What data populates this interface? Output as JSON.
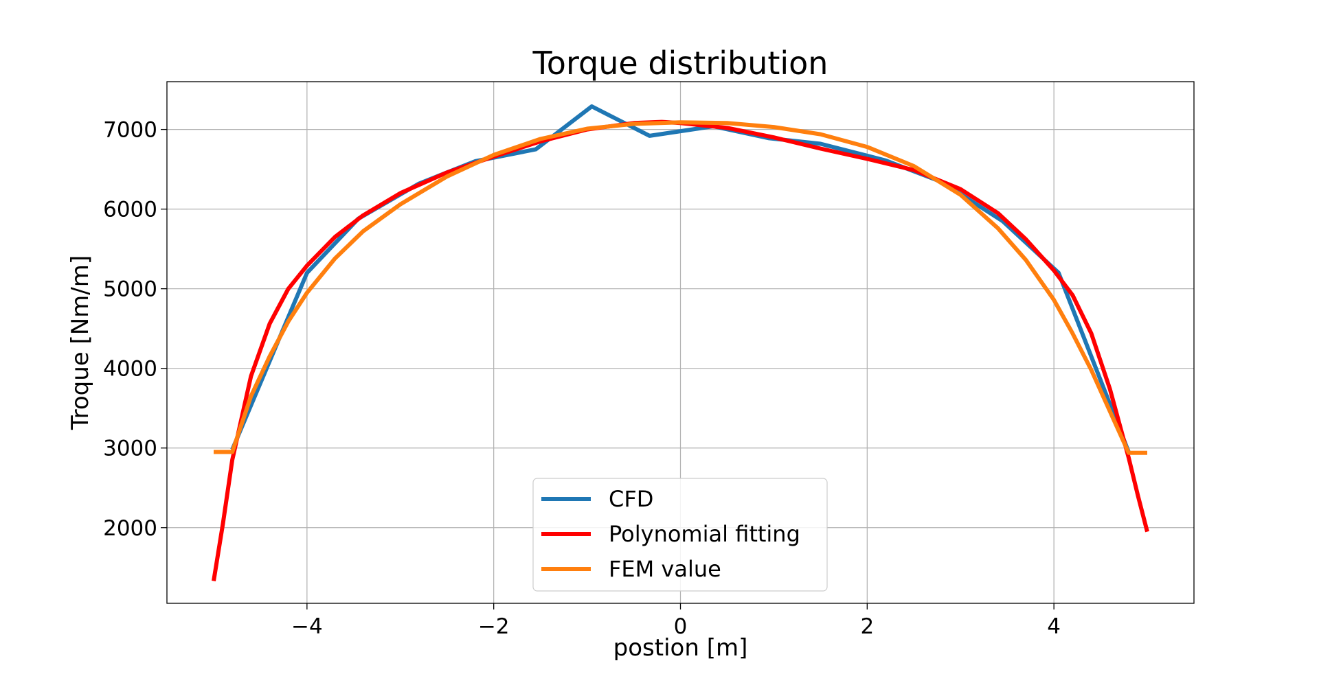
{
  "chart_data": {
    "type": "line",
    "title": "Torque distribution",
    "xlabel": "postion [m]",
    "ylabel": "Troque [Nm/m]",
    "xlim": [
      -5.5,
      5.5
    ],
    "ylim": [
      1050,
      7600
    ],
    "xticks": [
      -4,
      -2,
      0,
      2,
      4
    ],
    "xtick_labels": [
      "−4",
      "−2",
      "0",
      "2",
      "4"
    ],
    "yticks": [
      2000,
      3000,
      4000,
      5000,
      6000,
      7000
    ],
    "ytick_labels": [
      "2000",
      "3000",
      "4000",
      "5000",
      "6000",
      "7000"
    ],
    "grid": true,
    "legend_position": "lower-center",
    "series": [
      {
        "name": "CFD",
        "color": "#1f77b4",
        "x": [
          -4.8,
          -4.0,
          -3.45,
          -2.8,
          -2.2,
          -1.55,
          -0.95,
          -0.33,
          0.35,
          0.95,
          1.5,
          2.2,
          2.8,
          3.45,
          4.05,
          4.8
        ],
        "y": [
          2980,
          5200,
          5880,
          6320,
          6600,
          6750,
          7290,
          6920,
          7040,
          6890,
          6820,
          6610,
          6340,
          5850,
          5200,
          2950
        ]
      },
      {
        "name": "Polynomial fitting",
        "color": "#ff0000",
        "x": [
          -5.0,
          -4.9,
          -4.8,
          -4.6,
          -4.4,
          -4.2,
          -4.0,
          -3.7,
          -3.4,
          -3.0,
          -2.5,
          -2.0,
          -1.5,
          -1.0,
          -0.5,
          -0.2,
          0.0,
          0.5,
          1.0,
          1.5,
          2.0,
          2.5,
          3.0,
          3.4,
          3.7,
          4.0,
          4.2,
          4.4,
          4.6,
          4.8,
          4.9,
          5.0
        ],
        "y": [
          1330,
          2050,
          2850,
          3900,
          4560,
          5000,
          5290,
          5650,
          5920,
          6200,
          6460,
          6660,
          6850,
          7000,
          7080,
          7095,
          7080,
          7020,
          6900,
          6760,
          6630,
          6490,
          6250,
          5950,
          5620,
          5230,
          4920,
          4440,
          3740,
          2880,
          2400,
          1950
        ]
      },
      {
        "name": "FEM value",
        "color": "#ff7f0e",
        "x": [
          -5.0,
          -4.8,
          -4.6,
          -4.4,
          -4.2,
          -4.0,
          -3.7,
          -3.4,
          -3.0,
          -2.5,
          -2.0,
          -1.5,
          -1.0,
          -0.5,
          0.0,
          0.5,
          1.0,
          1.5,
          2.0,
          2.5,
          3.0,
          3.4,
          3.7,
          4.0,
          4.2,
          4.4,
          4.6,
          4.8,
          5.0
        ],
        "y": [
          2950,
          2950,
          3650,
          4150,
          4590,
          4950,
          5380,
          5720,
          6060,
          6410,
          6680,
          6880,
          7010,
          7070,
          7090,
          7080,
          7030,
          6940,
          6780,
          6540,
          6180,
          5760,
          5360,
          4860,
          4440,
          3980,
          3460,
          2940,
          2940
        ]
      }
    ]
  }
}
